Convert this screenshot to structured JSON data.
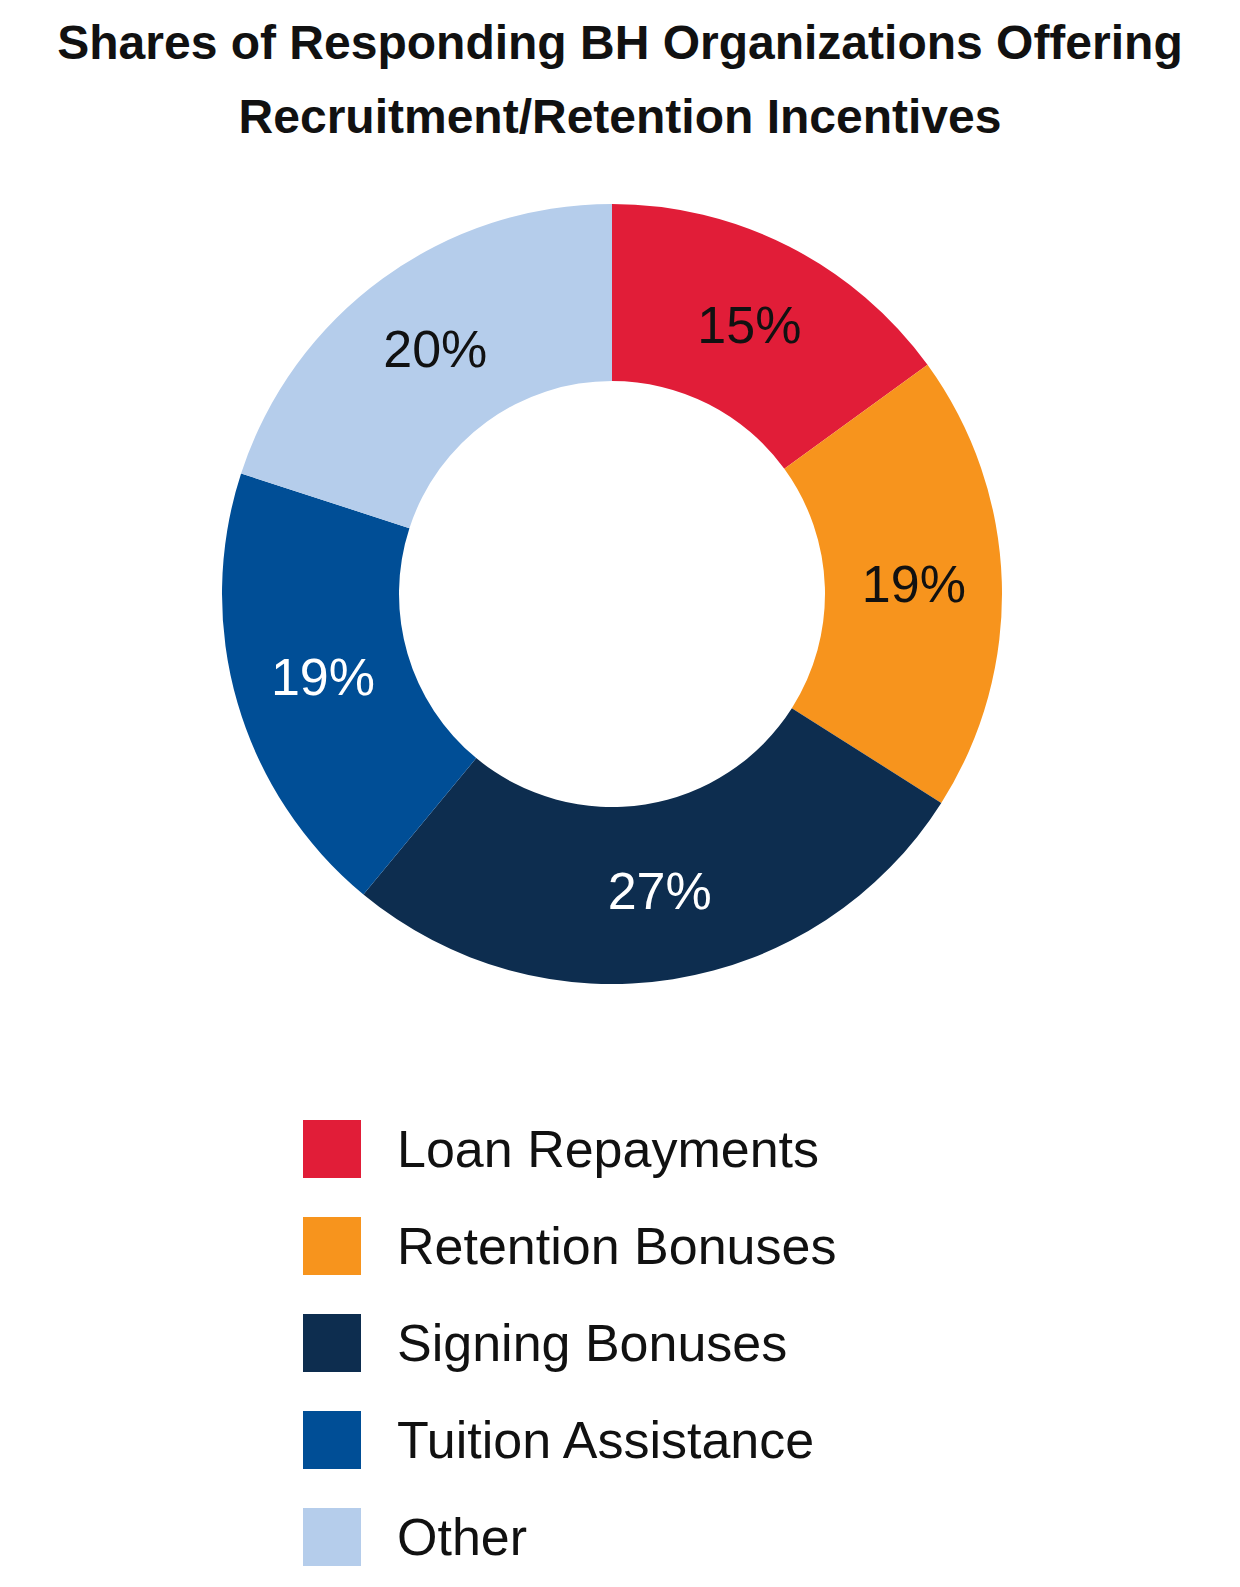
{
  "chart_data": {
    "type": "pie",
    "title": "Shares of Responding BH Organizations Offering Recruitment/Retention Incentives",
    "categories": [
      "Loan Repayments",
      "Retention Bonuses",
      "Signing Bonuses",
      "Tuition Assistance",
      "Other"
    ],
    "values": [
      15,
      19,
      27,
      19,
      20
    ],
    "value_labels": [
      "15%",
      "19%",
      "27%",
      "19%",
      "20%"
    ],
    "colors": [
      "#e11d38",
      "#f7941d",
      "#0d2d4f",
      "#004e96",
      "#b5cdeb"
    ],
    "data_labels": true,
    "legend": "bottom"
  }
}
